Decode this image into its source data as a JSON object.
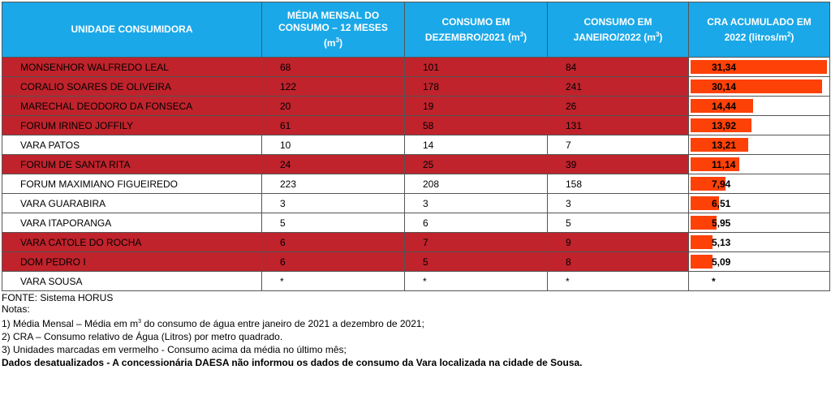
{
  "headers": {
    "unit": "UNIDADE CONSUMIDORA",
    "avg_line1": "MÉDIA MENSAL DO",
    "avg_line2": "CONSUMO – 12 MESES",
    "avg_line3": "(m",
    "avg_sup": "3",
    "avg_line3_end": ")",
    "dec_line1": "CONSUMO EM",
    "dec_line2": "DEZEMBRO/2021 (m",
    "dec_sup": "3",
    "dec_end": ")",
    "jan_line1": "CONSUMO EM",
    "jan_line2": "JANEIRO/2022 (m",
    "jan_sup": "3",
    "jan_end": ")",
    "cra_line1": "CRA ACUMULADO EM",
    "cra_line2": "2022 (litros/m",
    "cra_sup": "2",
    "cra_end": ")"
  },
  "rows": [
    {
      "unit": "MONSENHOR WALFREDO LEAL",
      "avg": "68",
      "dec": "101",
      "jan": "84",
      "cra": "31,34",
      "cra_value": 31.34,
      "above_average": true
    },
    {
      "unit": "CORALIO SOARES DE OLIVEIRA",
      "avg": "122",
      "dec": "178",
      "jan": "241",
      "cra": "30,14",
      "cra_value": 30.14,
      "above_average": true
    },
    {
      "unit": "MARECHAL DEODORO DA FONSECA",
      "avg": "20",
      "dec": "19",
      "jan": "26",
      "cra": "14,44",
      "cra_value": 14.44,
      "above_average": true
    },
    {
      "unit": "FORUM IRINEO JOFFILY",
      "avg": "61",
      "dec": "58",
      "jan": "131",
      "cra": "13,92",
      "cra_value": 13.92,
      "above_average": true
    },
    {
      "unit": "VARA PATOS",
      "avg": "10",
      "dec": "14",
      "jan": "7",
      "cra": "13,21",
      "cra_value": 13.21,
      "above_average": false
    },
    {
      "unit": "FORUM DE SANTA RITA",
      "avg": "24",
      "dec": "25",
      "jan": "39",
      "cra": "11,14",
      "cra_value": 11.14,
      "above_average": true
    },
    {
      "unit": "FORUM MAXIMIANO FIGUEIREDO",
      "avg": "223",
      "dec": "208",
      "jan": "158",
      "cra": "7,94",
      "cra_value": 7.94,
      "above_average": false
    },
    {
      "unit": "VARA GUARABIRA",
      "avg": "3",
      "dec": "3",
      "jan": "3",
      "cra": "6,51",
      "cra_value": 6.51,
      "above_average": false
    },
    {
      "unit": "VARA ITAPORANGA",
      "avg": "5",
      "dec": "6",
      "jan": "5",
      "cra": "5,95",
      "cra_value": 5.95,
      "above_average": false
    },
    {
      "unit": "VARA CATOLE DO ROCHA",
      "avg": "6",
      "dec": "7",
      "jan": "9",
      "cra": "5,13",
      "cra_value": 5.13,
      "above_average": true
    },
    {
      "unit": "DOM PEDRO I",
      "avg": "6",
      "dec": "5",
      "jan": "8",
      "cra": "5,09",
      "cra_value": 5.09,
      "above_average": true
    },
    {
      "unit": "VARA SOUSA",
      "avg": "*",
      "dec": "*",
      "jan": "*",
      "cra": "*",
      "cra_value": null,
      "above_average": false
    }
  ],
  "colors": {
    "header_bg": "#1aa8e8",
    "above_average_row": "#c0232c",
    "cra_bar": "#fd4107"
  },
  "notes": {
    "source": "FONTE: Sistema HORUS",
    "title": "Notas:",
    "n1_a": "1) Média Mensal – Média em m",
    "n1_sup": "3",
    "n1_b": " do consumo de água entre janeiro de 2021 a dezembro de 2021;",
    "n2": "2) CRA – Consumo relativo de Água (Litros) por metro quadrado.",
    "n3": "3) Unidades marcadas em vermelho -  Consumo acima da média no último mês;",
    "warning": "Dados desatualizados - A concessionária DAESA não informou os dados de consumo da Vara localizada na cidade de Sousa."
  }
}
